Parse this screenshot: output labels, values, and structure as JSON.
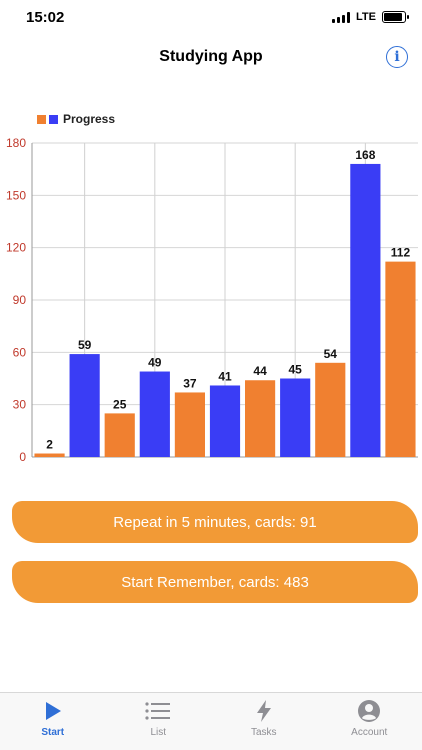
{
  "status_bar": {
    "time": "15:02",
    "network": "LTE",
    "battery_level": 0.9
  },
  "nav": {
    "title": "Studying App",
    "info_icon": "info-icon"
  },
  "chart_data": {
    "type": "bar",
    "title": "",
    "legend": [
      {
        "name": "Progress",
        "colors": [
          "#f08030",
          "#3a3df5"
        ]
      }
    ],
    "legend_placement": "top-left",
    "values": [
      2,
      59,
      25,
      49,
      37,
      41,
      44,
      45,
      54,
      168,
      112
    ],
    "bar_colors": [
      "#f08030",
      "#3a3df5",
      "#f08030",
      "#3a3df5",
      "#f08030",
      "#3a3df5",
      "#f08030",
      "#3a3df5",
      "#f08030",
      "#3a3df5",
      "#f08030"
    ],
    "ylim": [
      0,
      180
    ],
    "yticks": [
      0,
      30,
      60,
      90,
      120,
      150,
      180
    ],
    "grid": true,
    "xlabel": "",
    "ylabel": ""
  },
  "buttons": {
    "repeat": "Repeat in 5 minutes, cards: 91",
    "start_remember": "Start Remember, cards: 483"
  },
  "tabs": [
    {
      "label": "Start",
      "icon": "play-icon",
      "active": true
    },
    {
      "label": "List",
      "icon": "list-icon",
      "active": false
    },
    {
      "label": "Tasks",
      "icon": "bolt-icon",
      "active": false
    },
    {
      "label": "Account",
      "icon": "account-icon",
      "active": false
    }
  ],
  "colors": {
    "accent": "#2f6fd6",
    "orange": "#f08030",
    "blue": "#3a3df5",
    "button": "#f29a36",
    "tick_red": "#c0392b"
  }
}
